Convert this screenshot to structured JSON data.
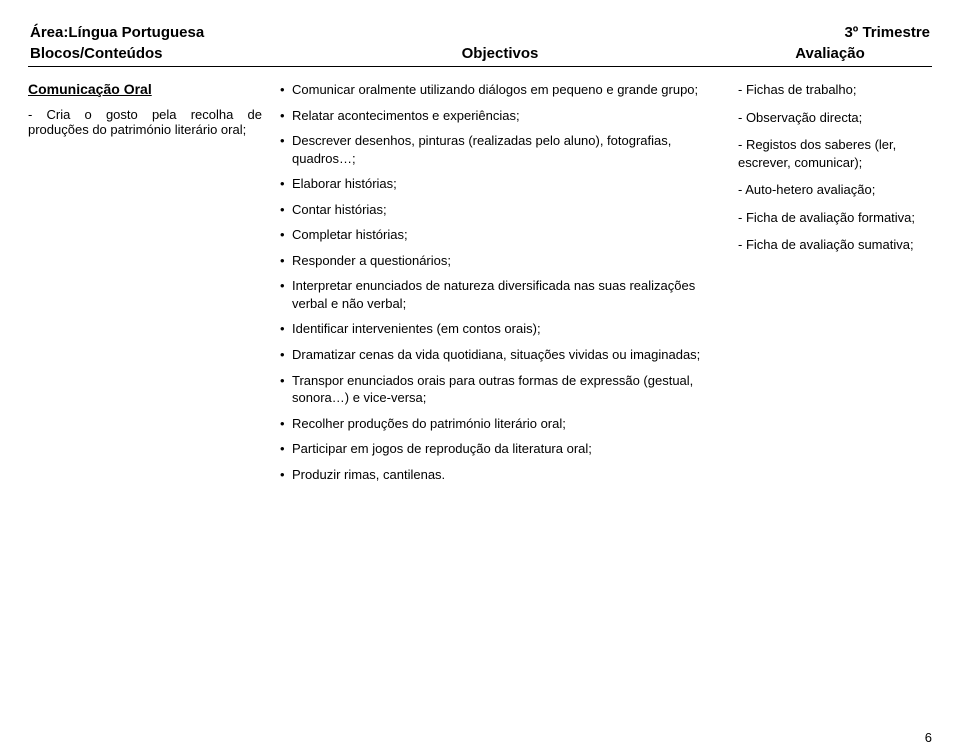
{
  "header": {
    "area_label": "Área:Língua Portuguesa",
    "trimester": "3º Trimestre"
  },
  "headings": {
    "col1": "Blocos/Conteúdos",
    "col2": "Objectivos",
    "col3": "Avaliação"
  },
  "blocos": {
    "title": "Comunicação Oral",
    "text": "- Cria o gosto pela recolha de produções do património literário oral;"
  },
  "objectivos": [
    "Comunicar oralmente utilizando diálogos em pequeno e grande grupo;",
    "Relatar acontecimentos e experiências;",
    "Descrever desenhos, pinturas (realizadas pelo aluno), fotografias, quadros…;",
    "Elaborar histórias;",
    "Contar histórias;",
    "Completar histórias;",
    "Responder a questionários;",
    "Interpretar enunciados de natureza diversificada nas suas realizações verbal e não verbal;",
    "Identificar intervenientes (em contos orais);",
    "Dramatizar cenas da vida quotidiana, situações vividas ou imaginadas;",
    "Transpor enunciados orais para outras formas de expressão (gestual, sonora…) e vice-versa;",
    "Recolher produções do património literário oral;",
    "Participar em jogos de reprodução da literatura oral;",
    "Produzir rimas, cantilenas."
  ],
  "avaliacao": [
    "- Fichas de trabalho;",
    "- Observação directa;",
    "- Registos dos saberes (ler, escrever, comunicar);",
    "- Auto-hetero avaliação;",
    "- Ficha de avaliação formativa;",
    "- Ficha de avaliação sumativa;"
  ],
  "page_number": "6"
}
